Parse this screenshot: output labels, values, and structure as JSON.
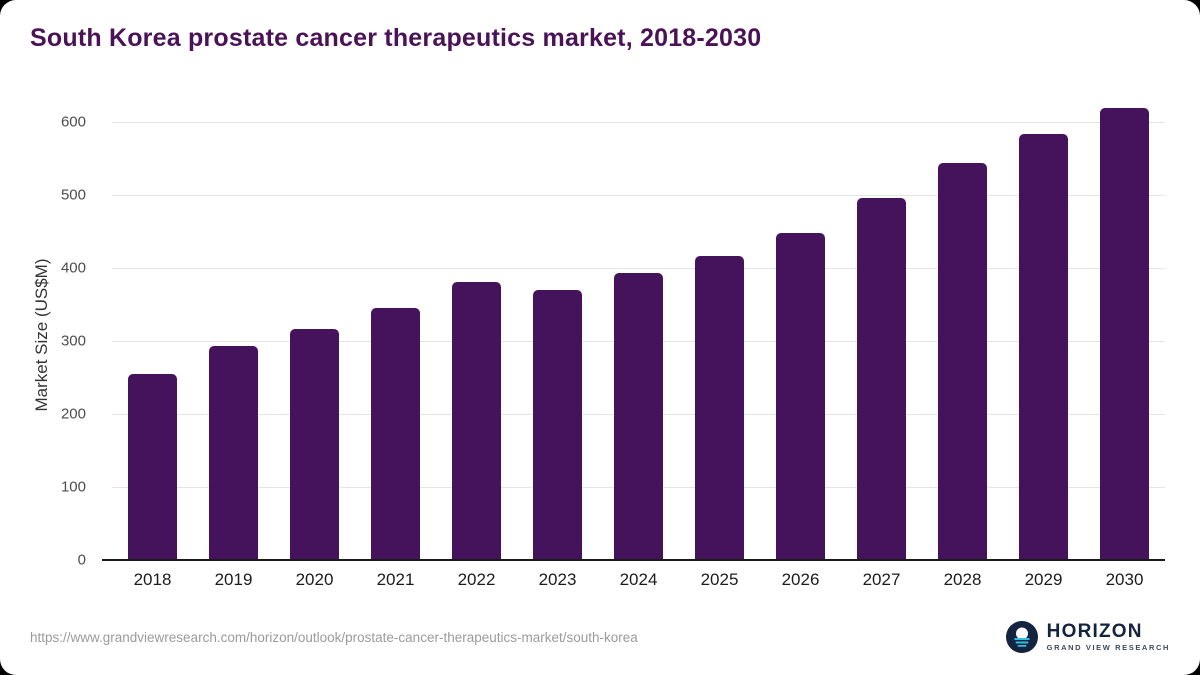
{
  "title": "South Korea prostate cancer therapeutics market, 2018-2030",
  "chart_data": {
    "type": "bar",
    "categories": [
      "2018",
      "2019",
      "2020",
      "2021",
      "2022",
      "2023",
      "2024",
      "2025",
      "2026",
      "2027",
      "2028",
      "2029",
      "2030"
    ],
    "values": [
      255,
      293,
      317,
      345,
      381,
      370,
      393,
      416,
      448,
      496,
      544,
      583,
      619
    ],
    "title": "South Korea prostate cancer therapeutics market, 2018-2030",
    "xlabel": "",
    "ylabel": "Market Size (US$M)",
    "ylim": [
      0,
      630
    ],
    "yticks": [
      0,
      100,
      200,
      300,
      400,
      500,
      600
    ],
    "grid": true,
    "legend": "none",
    "bar_color": "#45125c"
  },
  "footer": {
    "source_url": "https://www.grandviewresearch.com/horizon/outlook/prostate-cancer-therapeutics-market/south-korea",
    "logo": {
      "brand": "HORIZON",
      "sub_brand": "GRAND VIEW RESEARCH",
      "icon": "horizon-logo-icon"
    }
  },
  "colors": {
    "bar": "#45125c",
    "title": "#4a1358",
    "grid": "#e4e4e4",
    "axis": "#1a1a1a",
    "url_text": "#9b9b9b",
    "logo_navy": "#14233e",
    "logo_cyan": "#2fbfe3"
  }
}
